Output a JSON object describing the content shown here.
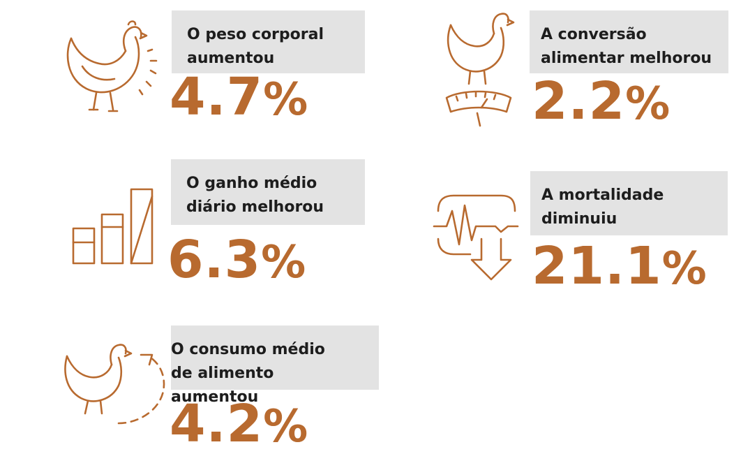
{
  "colors": {
    "accent": "#b86a2f",
    "box": "#e3e3e3",
    "text": "#1d1d1d"
  },
  "stats": [
    {
      "id": "body-weight",
      "label": "O peso corporal\naumentou",
      "number": "4.7",
      "unit": "%",
      "icon": "chicken-icon"
    },
    {
      "id": "feed-conversion",
      "label": "A conversão\nalimentar melhorou",
      "number": "2.2",
      "unit": "%",
      "icon": "chicken-on-scale-icon"
    },
    {
      "id": "daily-gain",
      "label": "O ganho médio\ndiário melhorou",
      "number": "6.3",
      "unit": "%",
      "icon": "bar-chart-icon"
    },
    {
      "id": "mortality",
      "label": "A mortalidade\ndiminuiu",
      "number": "21.1",
      "unit": "%",
      "icon": "heartbeat-down-arrow-icon"
    },
    {
      "id": "feed-intake",
      "label": "O consumo médio\nde alimento aumentou",
      "number": "4.2",
      "unit": "%",
      "icon": "chicken-cycle-icon"
    }
  ]
}
